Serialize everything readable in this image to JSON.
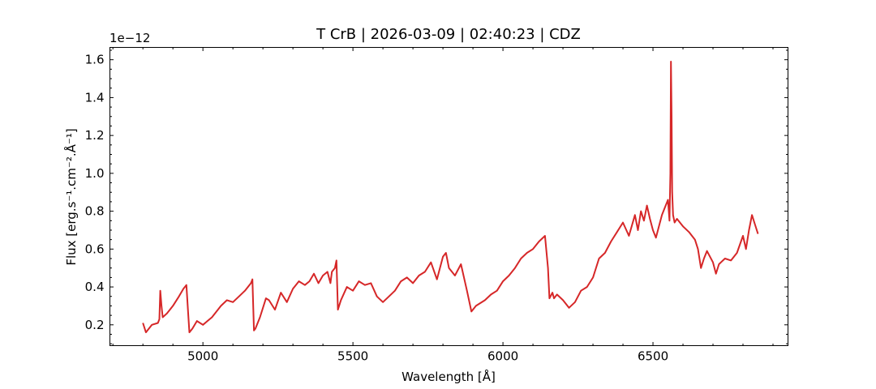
{
  "chart_data": {
    "type": "line",
    "title": "T CrB | 2026-03-09 | 02:40:23 | CDZ",
    "xlabel": "Wavelength [Å]",
    "ylabel": "Flux [erg.s⁻¹.cm⁻².Å⁻¹]",
    "y_offset_label": "1e−12",
    "xlim": [
      4690,
      6950
    ],
    "ylim": [
      0.09,
      1.665
    ],
    "x_ticks": [
      5000,
      5500,
      6000,
      6500
    ],
    "x_tick_labels": [
      "5000",
      "5500",
      "6000",
      "6500"
    ],
    "x_minor_step": 100,
    "y_ticks": [
      0.2,
      0.4,
      0.6,
      0.8,
      1.0,
      1.2,
      1.4,
      1.6
    ],
    "y_tick_labels": [
      "0.2",
      "0.4",
      "0.6",
      "0.8",
      "1.0",
      "1.2",
      "1.4",
      "1.6"
    ],
    "y_minor_step": 0.05,
    "ticks_direction": "in",
    "grid": false,
    "series": [
      {
        "color": "#d62728",
        "x": [
          4800,
          4810,
          4830,
          4850,
          4855,
          4858,
          4862,
          4866,
          4880,
          4900,
          4920,
          4935,
          4945,
          4950,
          4955,
          4965,
          4980,
          5000,
          5030,
          5060,
          5080,
          5100,
          5120,
          5140,
          5160,
          5165,
          5170,
          5175,
          5190,
          5210,
          5220,
          5240,
          5260,
          5280,
          5300,
          5320,
          5340,
          5355,
          5370,
          5385,
          5400,
          5415,
          5425,
          5430,
          5440,
          5445,
          5450,
          5460,
          5480,
          5500,
          5520,
          5540,
          5560,
          5580,
          5600,
          5620,
          5640,
          5660,
          5680,
          5700,
          5720,
          5740,
          5760,
          5780,
          5800,
          5810,
          5820,
          5840,
          5860,
          5880,
          5895,
          5910,
          5940,
          5960,
          5980,
          6000,
          6020,
          6040,
          6060,
          6080,
          6100,
          6120,
          6140,
          6150,
          6155,
          6165,
          6170,
          6180,
          6200,
          6220,
          6240,
          6260,
          6280,
          6300,
          6320,
          6340,
          6360,
          6380,
          6400,
          6420,
          6440,
          6450,
          6460,
          6470,
          6480,
          6490,
          6500,
          6510,
          6520,
          6530,
          6540,
          6550,
          6555,
          6558,
          6560,
          6562,
          6564,
          6567,
          6572,
          6580,
          6600,
          6620,
          6640,
          6650,
          6660,
          6670,
          6680,
          6690,
          6700,
          6710,
          6720,
          6740,
          6760,
          6780,
          6800,
          6810,
          6820,
          6830,
          6840,
          6850
        ],
        "y": [
          0.21,
          0.16,
          0.2,
          0.21,
          0.23,
          0.38,
          0.3,
          0.24,
          0.26,
          0.3,
          0.35,
          0.39,
          0.41,
          0.28,
          0.16,
          0.18,
          0.22,
          0.2,
          0.24,
          0.3,
          0.33,
          0.32,
          0.35,
          0.38,
          0.42,
          0.44,
          0.17,
          0.18,
          0.24,
          0.34,
          0.33,
          0.28,
          0.37,
          0.32,
          0.39,
          0.43,
          0.41,
          0.43,
          0.47,
          0.42,
          0.46,
          0.48,
          0.42,
          0.48,
          0.5,
          0.54,
          0.28,
          0.33,
          0.4,
          0.38,
          0.43,
          0.41,
          0.42,
          0.35,
          0.32,
          0.35,
          0.38,
          0.43,
          0.45,
          0.42,
          0.46,
          0.48,
          0.53,
          0.44,
          0.56,
          0.58,
          0.5,
          0.46,
          0.52,
          0.38,
          0.27,
          0.3,
          0.33,
          0.36,
          0.38,
          0.43,
          0.46,
          0.5,
          0.55,
          0.58,
          0.6,
          0.64,
          0.67,
          0.5,
          0.34,
          0.37,
          0.34,
          0.36,
          0.33,
          0.29,
          0.32,
          0.38,
          0.4,
          0.45,
          0.55,
          0.58,
          0.64,
          0.69,
          0.74,
          0.67,
          0.78,
          0.7,
          0.8,
          0.75,
          0.83,
          0.76,
          0.7,
          0.66,
          0.72,
          0.78,
          0.82,
          0.86,
          0.75,
          1.0,
          1.59,
          1.3,
          0.9,
          0.78,
          0.74,
          0.76,
          0.72,
          0.69,
          0.65,
          0.6,
          0.5,
          0.55,
          0.59,
          0.56,
          0.53,
          0.47,
          0.52,
          0.55,
          0.54,
          0.58,
          0.67,
          0.6,
          0.7,
          0.78,
          0.73,
          0.68
        ]
      }
    ]
  }
}
